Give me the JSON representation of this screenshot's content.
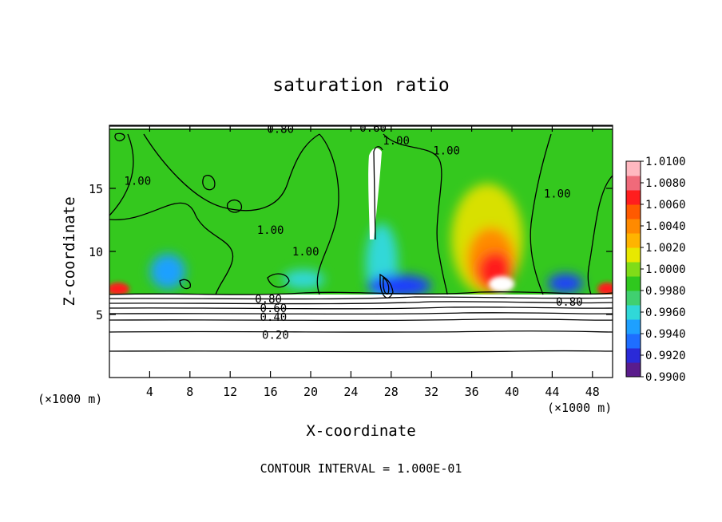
{
  "chart_data": {
    "type": "heatmap",
    "title": "saturation ratio",
    "xlabel": "X-coordinate",
    "ylabel": "Z-coordinate",
    "x_unit_left": "(×1000 m)",
    "x_unit_right": "(×1000 m)",
    "xlim": [
      0,
      50
    ],
    "ylim": [
      0,
      20
    ],
    "x_ticks": [
      4,
      8,
      12,
      16,
      20,
      24,
      28,
      32,
      36,
      40,
      44,
      48
    ],
    "y_ticks": [
      5,
      10,
      15
    ],
    "footer": "CONTOUR INTERVAL = 1.000E-01",
    "colorbar": {
      "levels": [
        0.99,
        0.992,
        0.994,
        0.996,
        0.998,
        1.0,
        1.002,
        1.004,
        1.006,
        1.008,
        1.01
      ],
      "labels": [
        "1.0100",
        "1.0080",
        "1.0060",
        "1.0040",
        "1.0020",
        "1.0000",
        "0.9980",
        "0.9960",
        "0.9940",
        "0.9920",
        "0.9900"
      ],
      "colors": [
        "#5a1c8c",
        "#2a2ad8",
        "#1e6eff",
        "#1ea0ff",
        "#30d8d8",
        "#40d070",
        "#2fc81e",
        "#80dc18",
        "#e8e800",
        "#ffb400",
        "#ff8a00",
        "#ff5a00",
        "#ff1e1e",
        "#f06a7a",
        "#ffb8c0"
      ]
    },
    "contour_labels": [
      {
        "text": "0.80",
        "x": 17.0,
        "z": 19.7
      },
      {
        "text": "0.60",
        "x": 26.2,
        "z": 19.8
      },
      {
        "text": "1.00",
        "x": 28.5,
        "z": 18.8
      },
      {
        "text": "1.00",
        "x": 33.5,
        "z": 18.0
      },
      {
        "text": "1.00",
        "x": 2.8,
        "z": 15.6
      },
      {
        "text": "1.00",
        "x": 44.5,
        "z": 14.6
      },
      {
        "text": "1.00",
        "x": 16.0,
        "z": 11.7
      },
      {
        "text": "1.00",
        "x": 19.5,
        "z": 10.0
      },
      {
        "text": "0.80",
        "x": 15.8,
        "z": 6.25
      },
      {
        "text": "0.60",
        "x": 16.3,
        "z": 5.5
      },
      {
        "text": "0.40",
        "x": 16.3,
        "z": 4.8
      },
      {
        "text": "0.20",
        "x": 16.5,
        "z": 3.4
      },
      {
        "text": "0.80",
        "x": 45.7,
        "z": 6.0
      }
    ]
  }
}
